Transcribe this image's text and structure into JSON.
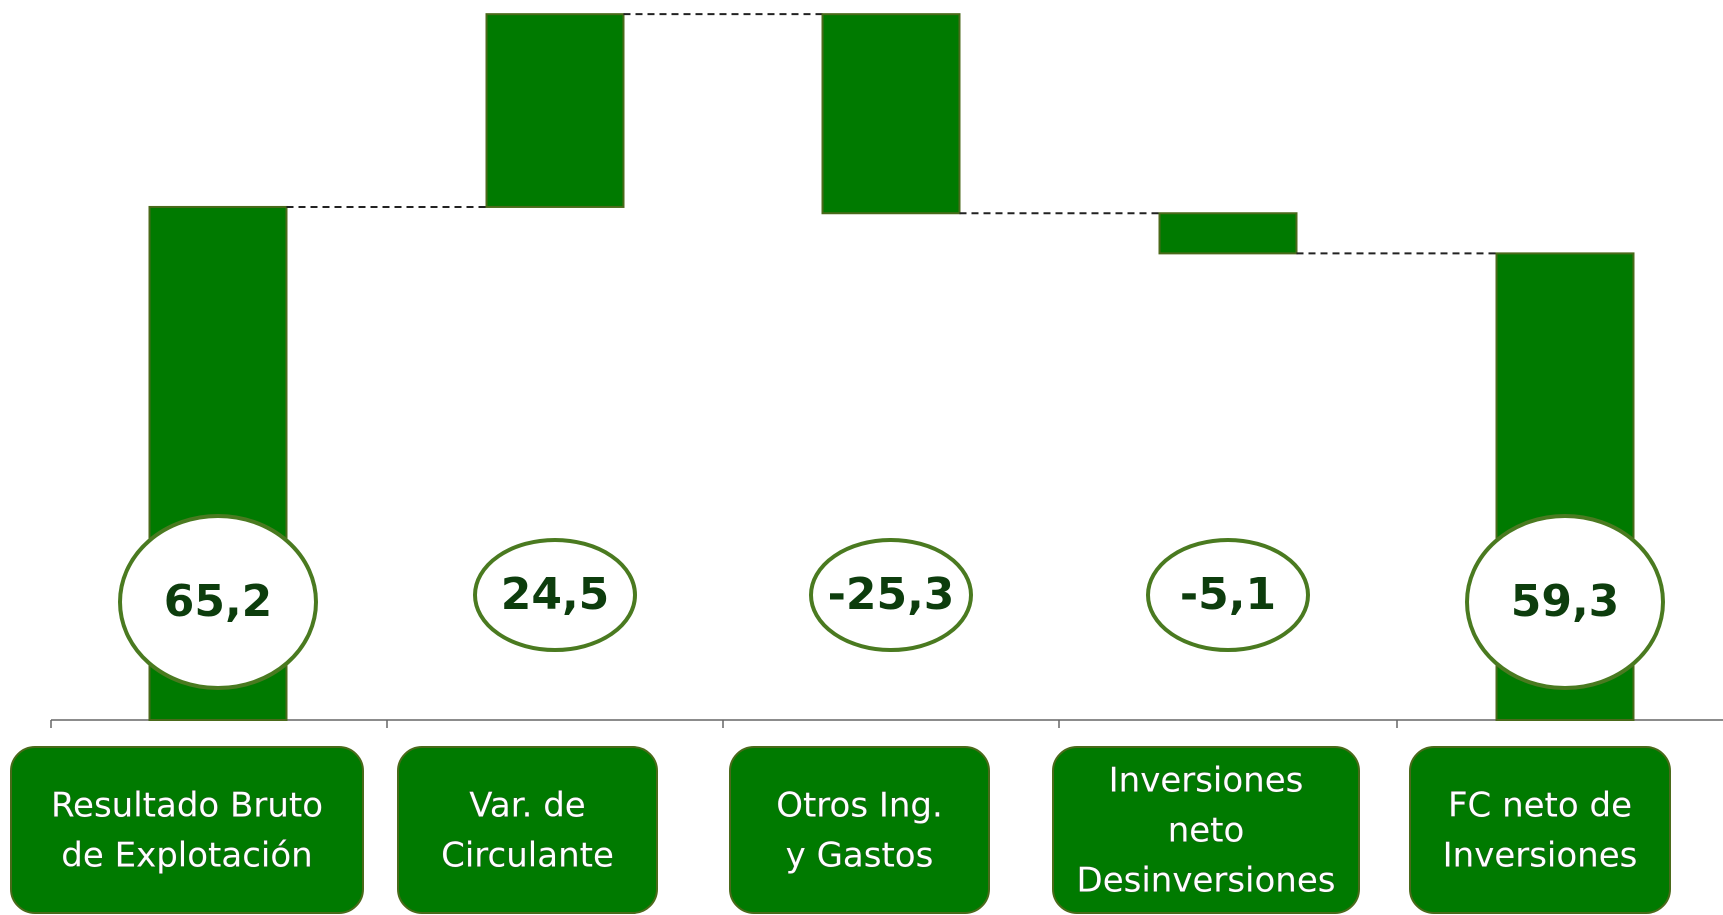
{
  "chart_data": {
    "type": "waterfall",
    "categories": [
      [
        "Resultado Bruto",
        "de Explotación"
      ],
      [
        "Var. de",
        "Circulante"
      ],
      [
        "Otros Ing.",
        "y Gastos"
      ],
      [
        "Inversiones",
        "neto",
        "Desinversiones"
      ],
      [
        "FC neto de",
        "Inversiones"
      ]
    ],
    "values": [
      65.2,
      24.5,
      -25.3,
      -5.1,
      59.3
    ],
    "value_labels": [
      "65,2",
      "24,5",
      "-25,3",
      "-5,1",
      "59,3"
    ],
    "measure": [
      "absolute",
      "relative",
      "relative",
      "relative",
      "total"
    ],
    "color": "#007a00",
    "ylim": [
      0,
      91.5
    ]
  }
}
